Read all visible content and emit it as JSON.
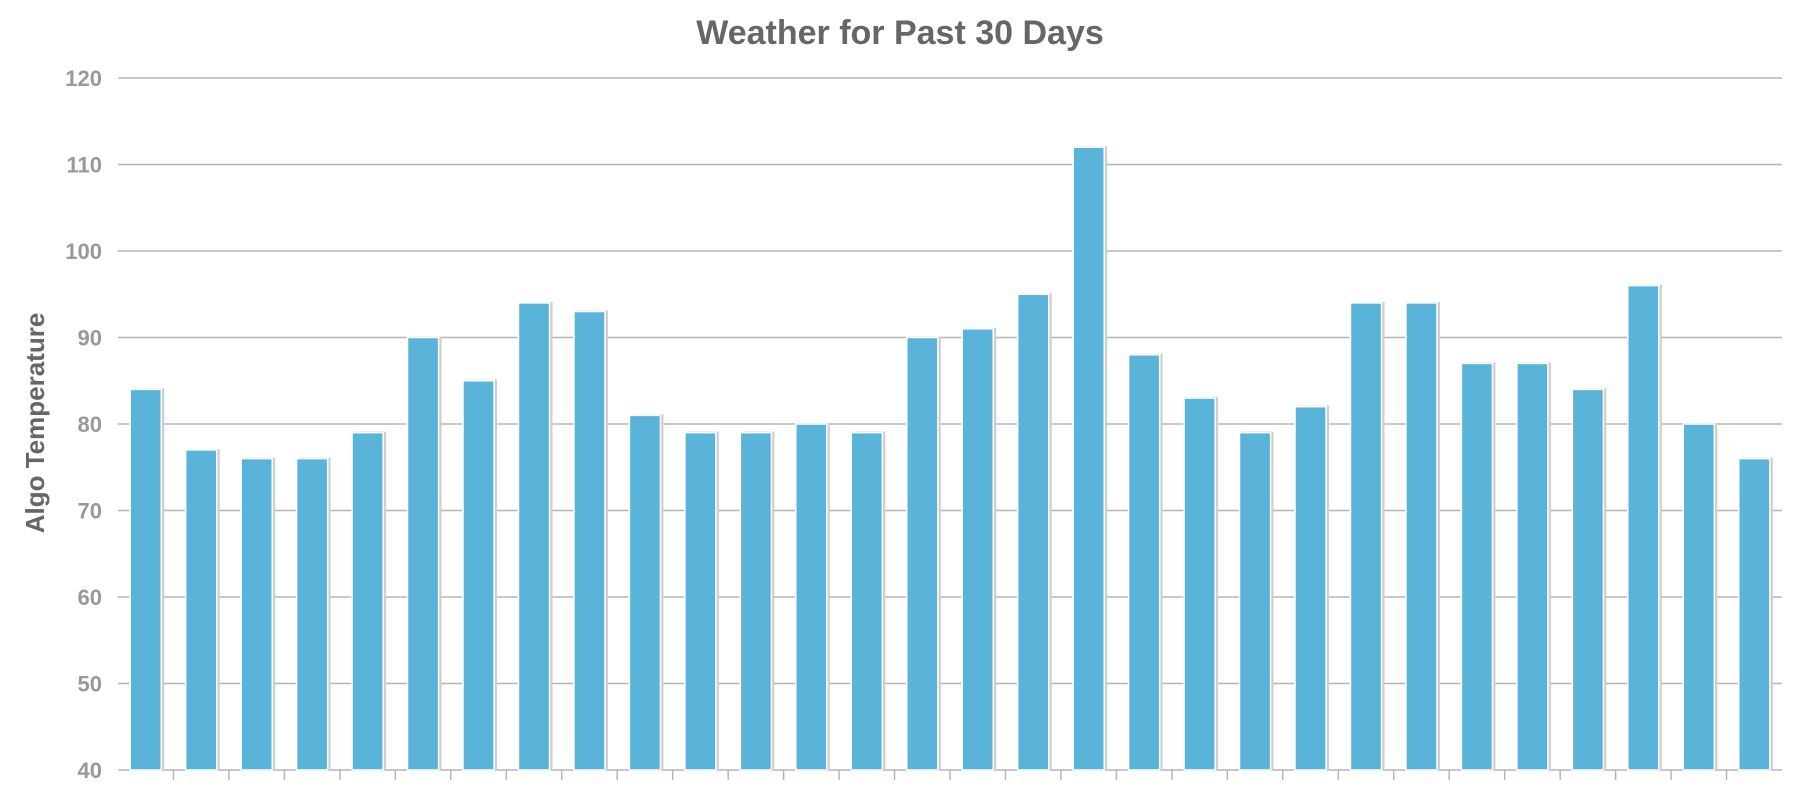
{
  "chart_data": {
    "type": "bar",
    "title": "Weather for Past 30 Days",
    "xlabel": "",
    "ylabel": "Algo Temperature",
    "ylim": [
      40,
      120
    ],
    "yticks": [
      40,
      50,
      60,
      70,
      80,
      90,
      100,
      110,
      120
    ],
    "grid": true,
    "categories": [
      "",
      "",
      "",
      "",
      "",
      "",
      "",
      "",
      "",
      "",
      "",
      "",
      "",
      "",
      "",
      "",
      "",
      "",
      "",
      "",
      "",
      "",
      "",
      "",
      "",
      "",
      "",
      "",
      "",
      ""
    ],
    "values": [
      84,
      77,
      76,
      76,
      79,
      90,
      85,
      94,
      93,
      81,
      79,
      79,
      80,
      79,
      90,
      91,
      95,
      112,
      88,
      83,
      79,
      82,
      94,
      94,
      87,
      87,
      84,
      96,
      80,
      76
    ],
    "colors": {
      "bar": "#5ab3d9",
      "bar_shadow": "#cfcfcf",
      "grid": "#b5b5b5",
      "title": "#666666",
      "tick": "#999999"
    }
  }
}
